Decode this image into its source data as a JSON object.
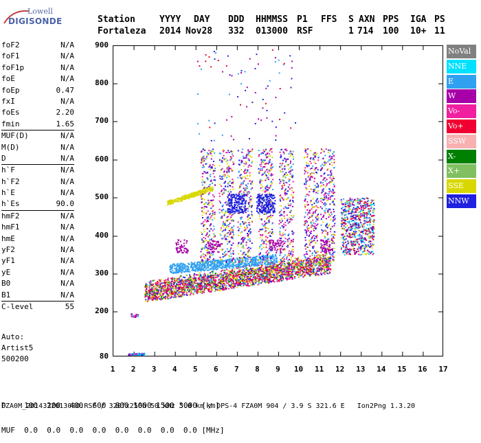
{
  "logo": {
    "line1": "Lowell",
    "line2": "DIGISONDE"
  },
  "header": {
    "labels": [
      "Station",
      "YYYY",
      "DAY",
      "DDD",
      "HHMMSS",
      "P1",
      "FFS",
      "S",
      "AXN",
      "PPS",
      "IGA",
      "PS"
    ],
    "values": [
      "Fortaleza",
      "2014",
      "Nov28",
      "332",
      "013000",
      "RSF",
      "",
      "1",
      "714",
      "100",
      "10+",
      "11"
    ]
  },
  "params": {
    "group1": [
      {
        "k": "foF2",
        "v": "N/A"
      },
      {
        "k": "foF1",
        "v": "N/A"
      },
      {
        "k": "foF1p",
        "v": "N/A"
      },
      {
        "k": "foE",
        "v": "N/A"
      },
      {
        "k": "foEp",
        "v": "0.47"
      },
      {
        "k": "fxI",
        "v": "N/A"
      },
      {
        "k": "foEs",
        "v": "2.20"
      },
      {
        "k": "fmin",
        "v": "1.65"
      }
    ],
    "group2": [
      {
        "k": "MUF(D)",
        "v": "N/A"
      },
      {
        "k": "M(D)",
        "v": "N/A"
      },
      {
        "k": "D",
        "v": "N/A"
      }
    ],
    "group3": [
      {
        "k": "h`F",
        "v": "N/A"
      },
      {
        "k": "h`F2",
        "v": "N/A"
      },
      {
        "k": "h`E",
        "v": "N/A"
      },
      {
        "k": "h`Es",
        "v": "90.0"
      }
    ],
    "group4": [
      {
        "k": "hmF2",
        "v": "N/A"
      },
      {
        "k": "hmF1",
        "v": "N/A"
      },
      {
        "k": "hmE",
        "v": "N/A"
      },
      {
        "k": "yF2",
        "v": "N/A"
      },
      {
        "k": "yF1",
        "v": "N/A"
      },
      {
        "k": "yE",
        "v": "N/A"
      },
      {
        "k": "B0",
        "v": "N/A"
      },
      {
        "k": "B1",
        "v": "N/A"
      }
    ],
    "group5": [
      {
        "k": "C-level",
        "v": "55"
      }
    ]
  },
  "extra": {
    "auto": "Auto:",
    "artist": "Artist5",
    "version": "500200"
  },
  "axes": {
    "y_ticks": [
      "900",
      "800",
      "700",
      "600",
      "500",
      "400",
      "300",
      "200",
      "80"
    ],
    "x_ticks": [
      "1",
      "2",
      "3",
      "4",
      "5",
      "6",
      "7",
      "8",
      "9",
      "10",
      "11",
      "12",
      "13",
      "14",
      "15",
      "16",
      "17"
    ]
  },
  "legend": [
    {
      "label": "NoVal",
      "color": "#808080"
    },
    {
      "label": "NNE",
      "color": "#00e0ff"
    },
    {
      "label": "E",
      "color": "#30a0f0"
    },
    {
      "label": "W",
      "color": "#a800a8"
    },
    {
      "label": "Vo-",
      "color": "#f020a0"
    },
    {
      "label": "Vo+",
      "color": "#f00030"
    },
    {
      "label": "SSW",
      "color": "#f8b0b0"
    },
    {
      "label": "X-",
      "color": "#008000"
    },
    {
      "label": "X+",
      "color": "#80c060"
    },
    {
      "label": "SSE",
      "color": "#d8d800"
    },
    {
      "label": "NNW",
      "color": "#2020e0"
    }
  ],
  "bottom": {
    "d_row": "D    100  200  400  600  800 1000 1500 3000 [km]",
    "muf_row": "MUF  0.0  0.0  0.0  0.0  0.0  0.0  0.0  0.0 [MHz]"
  },
  "footer": "FZA0M_2014332013000.RSF / 320fx256h 50 kHz 5.0 km / DPS-4 FZA0M 904 / 3.9 S 321.6 E   Ion2Png 1.3.20"
}
